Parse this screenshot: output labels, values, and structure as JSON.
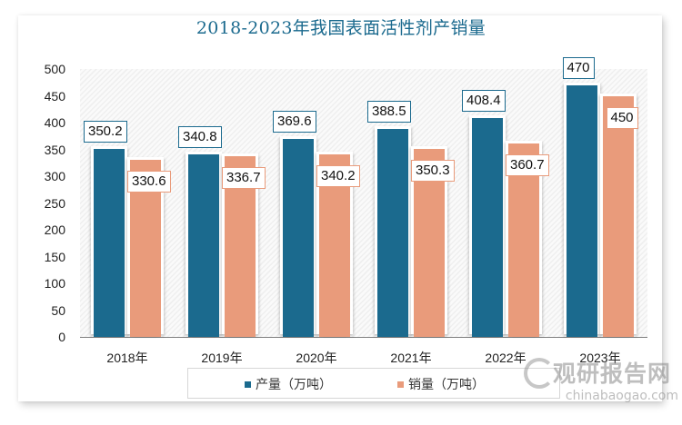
{
  "chart_data": {
    "type": "bar",
    "title": "2018-2023年我国表面活性剂产销量",
    "categories": [
      "2018年",
      "2019年",
      "2020年",
      "2021年",
      "2022年",
      "2023年"
    ],
    "series": [
      {
        "name": "产量（万吨）",
        "color": "#1b6a8e",
        "values": [
          350.2,
          340.8,
          369.6,
          388.5,
          408.4,
          470
        ]
      },
      {
        "name": "销量（万吨）",
        "color": "#e99b7b",
        "values": [
          330.6,
          336.7,
          340.2,
          350.3,
          360.7,
          450
        ]
      }
    ],
    "value_labels": {
      "production": [
        "350.2",
        "340.8",
        "369.6",
        "388.5",
        "408.4",
        "470"
      ],
      "sales": [
        "330.6",
        "336.7",
        "340.2",
        "350.3",
        "360.7",
        "450"
      ]
    },
    "xlabel": "",
    "ylabel": "",
    "ylim": [
      0,
      500
    ],
    "yticks": [
      "0",
      "50",
      "100",
      "150",
      "200",
      "250",
      "300",
      "350",
      "400",
      "450",
      "500"
    ],
    "grid": false,
    "legend_position": "bottom"
  },
  "watermark": {
    "cn": "观研报告网",
    "en": "chinabaogao.com"
  }
}
